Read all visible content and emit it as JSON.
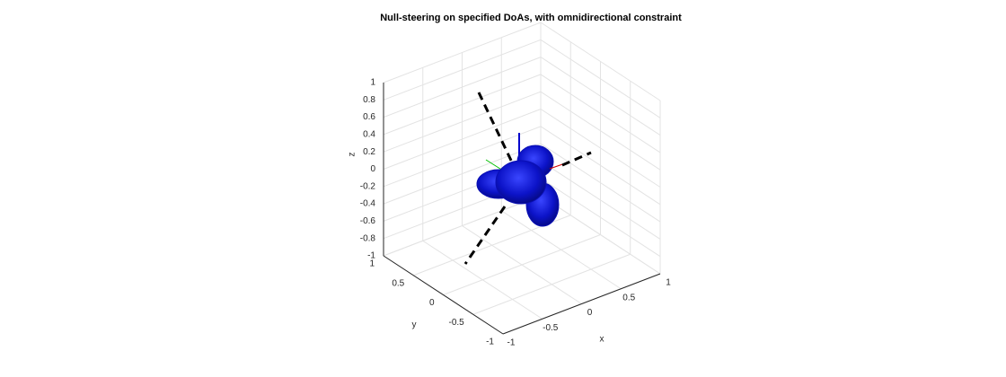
{
  "chart_data": {
    "type": "surface3d",
    "title": "Null-steering on specified DoAs, with omnidirectional constraint",
    "xlabel": "x",
    "ylabel": "y",
    "zlabel": "z",
    "xlim": [
      -1,
      1
    ],
    "ylim": [
      -1,
      1
    ],
    "zlim": [
      -1,
      1
    ],
    "xticks": [
      -1,
      -0.5,
      0,
      0.5,
      1
    ],
    "yticks": [
      -1,
      -0.5,
      0,
      0.5,
      1
    ],
    "zticks": [
      -1,
      -0.8,
      -0.6,
      -0.4,
      -0.2,
      0,
      0.2,
      0.4,
      0.6,
      0.8,
      1
    ],
    "grid": true,
    "color": "#0a0fb4"
  }
}
